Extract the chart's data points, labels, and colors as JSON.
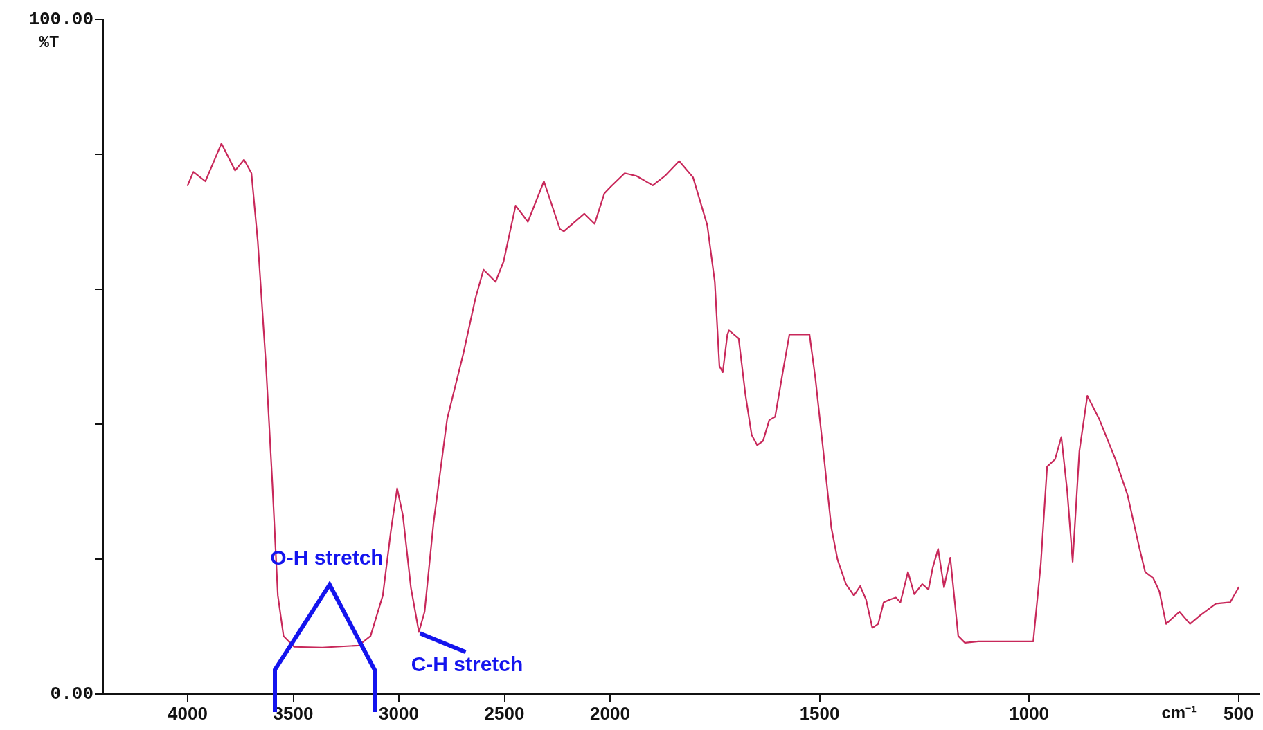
{
  "chart_data": [
    {
      "type": "line",
      "ylabel": "%T",
      "xlim": [
        4400,
        2000
      ],
      "ylim": [
        0,
        100
      ],
      "xticks": [
        4000,
        3500,
        3000,
        2500
      ],
      "yticks": [
        {
          "value": 0,
          "label": "0.00"
        },
        {
          "value": 20,
          "label": null
        },
        {
          "value": 40,
          "label": null
        },
        {
          "value": 60,
          "label": null
        },
        {
          "value": 80,
          "label": null
        },
        {
          "value": 100,
          "label": "100.00"
        }
      ],
      "annotations": [
        "O-H stretch",
        {
          "text": "C-H stretch",
          "x": 2900,
          "y": 9
        }
      ],
      "series": [
        {
          "color": "#c8285a",
          "x": [
            4000,
            3973,
            3916,
            3840,
            3775,
            3733,
            3698,
            3668,
            3630,
            3599,
            3573,
            3546,
            3496,
            3363,
            3191,
            3134,
            3076,
            3038,
            3008,
            2981,
            2943,
            2905,
            2878,
            2836,
            2771,
            2695,
            2637,
            2599,
            2542,
            2504,
            2447,
            2389,
            2313,
            2237,
            2218,
            2122,
            2073,
            2027,
            2000
          ],
          "values": [
            75.4,
            77.4,
            76.0,
            81.6,
            77.6,
            79.2,
            77.2,
            67.1,
            49.2,
            31.3,
            14.6,
            8.6,
            7.0,
            6.9,
            7.2,
            8.6,
            14.6,
            24.1,
            30.5,
            26.5,
            15.8,
            9.2,
            12.2,
            25.3,
            40.8,
            50.4,
            58.7,
            62.9,
            61.1,
            64.1,
            72.4,
            70.0,
            76.0,
            68.9,
            68.6,
            71.2,
            69.7,
            74.2,
            75.1
          ]
        }
      ]
    },
    {
      "type": "line",
      "xlabel": "cm⁻¹",
      "xlim": [
        2000,
        450
      ],
      "ylim": [
        0,
        100
      ],
      "xticks": [
        2000,
        1500,
        1000,
        500
      ],
      "tick_labels": "x",
      "series": [
        {
          "color": "#c8285a",
          "x": [
            2000,
            1965,
            1937,
            1898,
            1869,
            1835,
            1802,
            1768,
            1750,
            1739,
            1731,
            1720,
            1716,
            1693,
            1677,
            1662,
            1649,
            1635,
            1620,
            1606,
            1587,
            1572,
            1524,
            1510,
            1491,
            1472,
            1457,
            1437,
            1418,
            1403,
            1389,
            1374,
            1360,
            1347,
            1332,
            1318,
            1307,
            1289,
            1274,
            1255,
            1240,
            1230,
            1217,
            1203,
            1188,
            1169,
            1153,
            1121,
            990,
            972,
            957,
            938,
            923,
            909,
            896,
            880,
            861,
            833,
            794,
            765,
            737,
            723,
            704,
            689,
            673,
            641,
            616,
            593,
            554,
            520,
            500
          ],
          "values": [
            75.1,
            77.2,
            76.8,
            75.4,
            76.8,
            79.0,
            76.6,
            69.5,
            61.1,
            48.6,
            47.7,
            53.3,
            53.9,
            52.7,
            44.4,
            38.4,
            36.9,
            37.5,
            40.6,
            41.1,
            48.0,
            53.3,
            53.3,
            46.8,
            36.0,
            24.7,
            19.9,
            16.3,
            14.6,
            16.0,
            14.0,
            9.8,
            10.4,
            13.6,
            14.0,
            14.3,
            13.6,
            18.1,
            14.8,
            16.3,
            15.5,
            18.7,
            21.5,
            15.8,
            20.2,
            8.6,
            7.6,
            7.8,
            7.8,
            19.3,
            33.7,
            34.8,
            38.1,
            30.1,
            19.6,
            36.0,
            44.2,
            40.8,
            34.8,
            29.5,
            21.7,
            18.1,
            17.2,
            15.2,
            10.4,
            12.2,
            10.4,
            11.6,
            13.4,
            13.6,
            15.8
          ]
        }
      ]
    }
  ]
}
